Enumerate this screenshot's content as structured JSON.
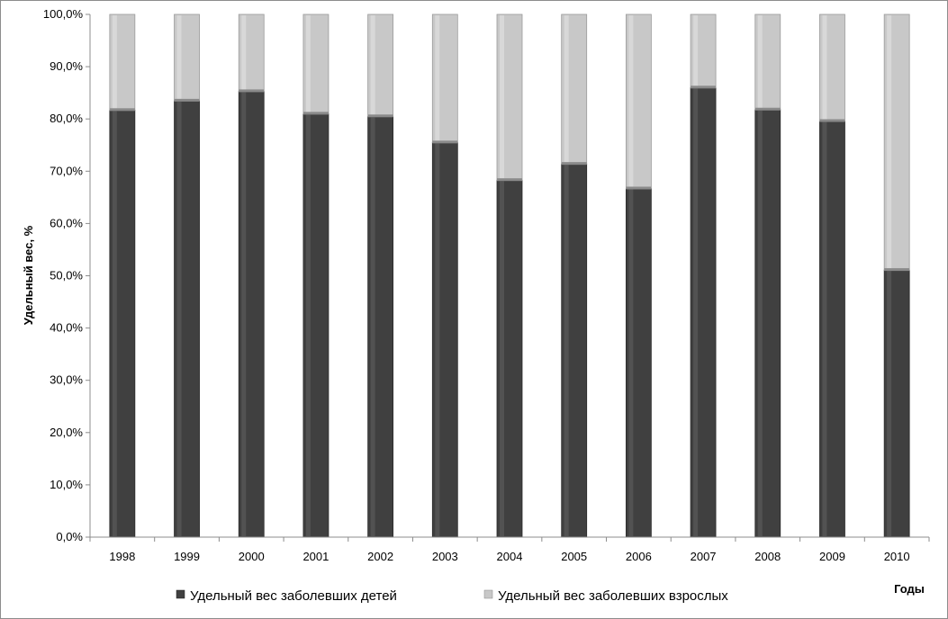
{
  "chart_data": {
    "type": "bar",
    "stacked": true,
    "categories": [
      "1998",
      "1999",
      "2000",
      "2001",
      "2002",
      "2003",
      "2004",
      "2005",
      "2006",
      "2007",
      "2008",
      "2009",
      "2010"
    ],
    "series": [
      {
        "name": "Удельный вес заболевших детей",
        "color": "#404040",
        "values": [
          81.7,
          83.5,
          85.3,
          81.0,
          80.5,
          75.5,
          68.3,
          71.4,
          66.7,
          86.0,
          81.8,
          79.6,
          51.1
        ]
      },
      {
        "name": "Удельный вес заболевших взрослых",
        "color": "#c8c8c8",
        "values": [
          18.3,
          16.5,
          14.7,
          19.0,
          19.5,
          24.5,
          31.7,
          28.6,
          33.3,
          14.0,
          18.2,
          20.4,
          48.9
        ]
      }
    ],
    "yticks": [
      "0,0%",
      "10,0%",
      "20,0%",
      "30,0%",
      "40,0%",
      "50,0%",
      "60,0%",
      "70,0%",
      "80,0%",
      "90,0%",
      "100,0%"
    ],
    "ylim": [
      0,
      100
    ],
    "ylabel": "Удельный вес, %",
    "xlabel": "Годы",
    "legend_position": "bottom",
    "grid": false
  }
}
